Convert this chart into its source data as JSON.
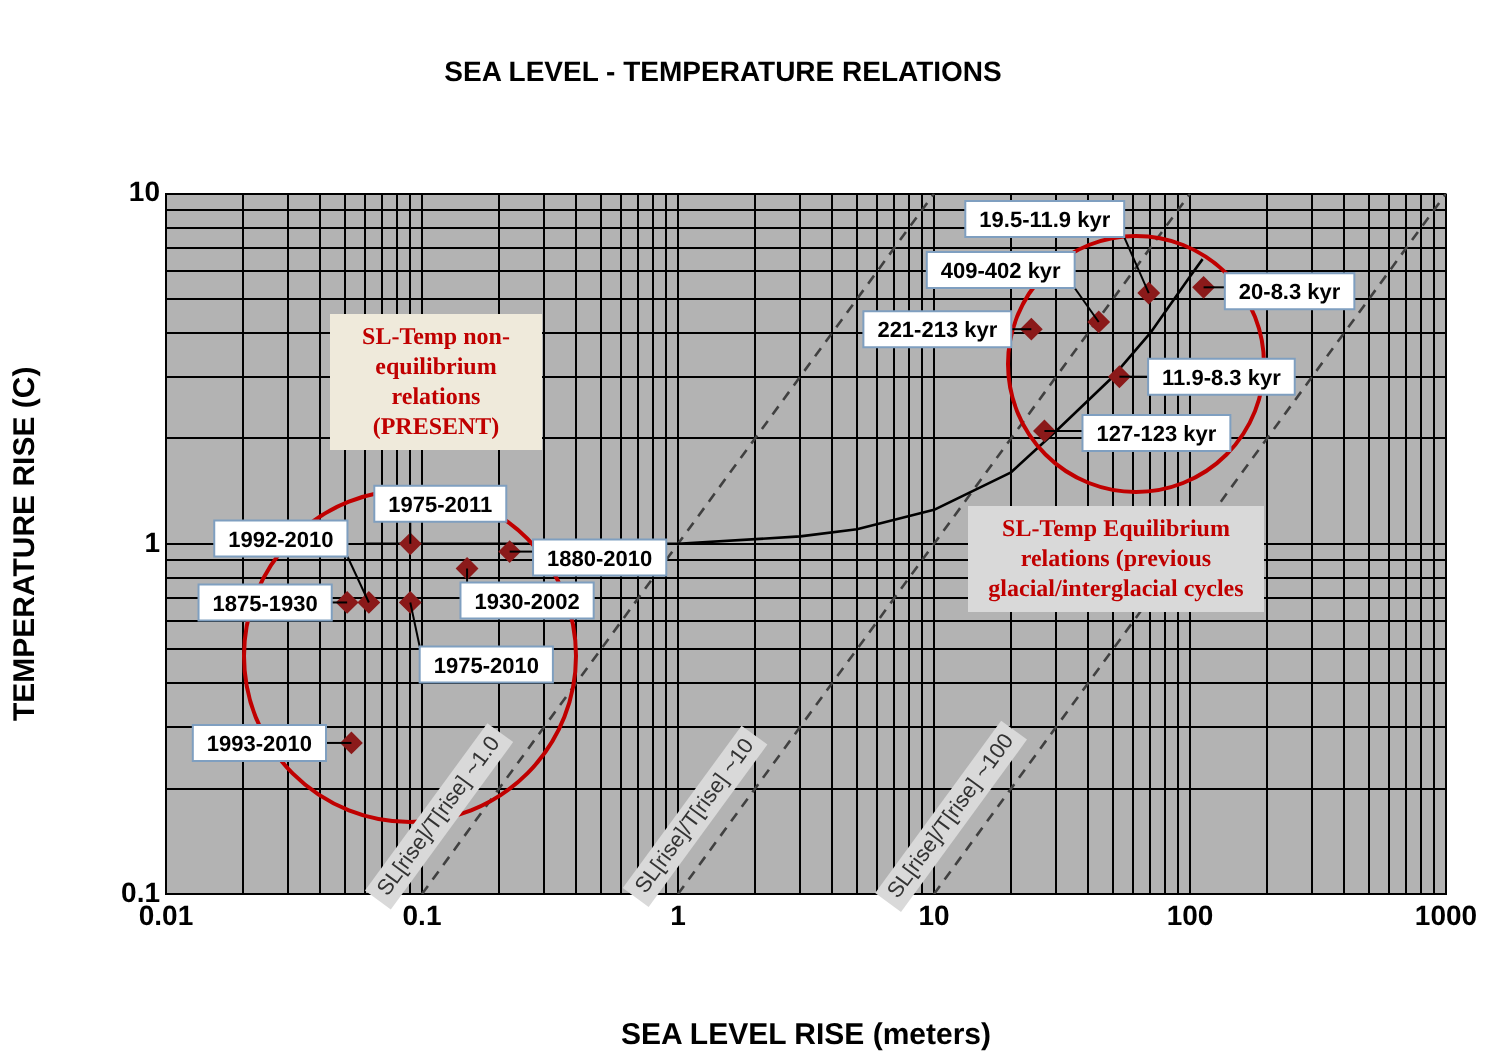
{
  "chart_data": {
    "type": "scatter",
    "title": "SEA LEVEL - TEMPERATURE RELATIONS",
    "xlabel": "SEA LEVEL RISE (meters)",
    "ylabel": "TEMPERATURE RISE (C)",
    "log": "xy",
    "grid": true,
    "legend": false,
    "xlim": [
      0.01,
      1000
    ],
    "ylim": [
      0.1,
      10
    ],
    "xticks": [
      0.01,
      {
        "value": 0.02,
        "label": null
      },
      {
        "value": 0.03,
        "label": null
      },
      {
        "value": 0.04,
        "label": null
      },
      {
        "value": 0.05,
        "label": null
      },
      {
        "value": 0.06,
        "label": null
      },
      {
        "value": 0.07,
        "label": null
      },
      {
        "value": 0.08,
        "label": null
      },
      {
        "value": 0.09,
        "label": null
      },
      0.1,
      {
        "value": 0.2,
        "label": null
      },
      {
        "value": 0.3,
        "label": null
      },
      {
        "value": 0.4,
        "label": null
      },
      {
        "value": 0.5,
        "label": null
      },
      {
        "value": 0.6,
        "label": null
      },
      {
        "value": 0.7,
        "label": null
      },
      {
        "value": 0.8,
        "label": null
      },
      {
        "value": 0.9,
        "label": null
      },
      1,
      {
        "value": 2,
        "label": null
      },
      {
        "value": 3,
        "label": null
      },
      {
        "value": 4,
        "label": null
      },
      {
        "value": 5,
        "label": null
      },
      {
        "value": 6,
        "label": null
      },
      {
        "value": 7,
        "label": null
      },
      {
        "value": 8,
        "label": null
      },
      {
        "value": 9,
        "label": null
      },
      10,
      {
        "value": 20,
        "label": null
      },
      {
        "value": 30,
        "label": null
      },
      {
        "value": 40,
        "label": null
      },
      {
        "value": 50,
        "label": null
      },
      {
        "value": 60,
        "label": null
      },
      {
        "value": 70,
        "label": null
      },
      {
        "value": 80,
        "label": null
      },
      {
        "value": 90,
        "label": null
      },
      100,
      {
        "value": 200,
        "label": null
      },
      {
        "value": 300,
        "label": null
      },
      {
        "value": 400,
        "label": null
      },
      {
        "value": 500,
        "label": null
      },
      {
        "value": 600,
        "label": null
      },
      {
        "value": 700,
        "label": null
      },
      {
        "value": 800,
        "label": null
      },
      {
        "value": 900,
        "label": null
      },
      1000
    ],
    "yticks": [
      0.1,
      {
        "value": 0.2,
        "label": null
      },
      {
        "value": 0.3,
        "label": null
      },
      {
        "value": 0.4,
        "label": null
      },
      {
        "value": 0.5,
        "label": null
      },
      {
        "value": 0.6,
        "label": null
      },
      {
        "value": 0.7,
        "label": null
      },
      {
        "value": 0.8,
        "label": null
      },
      {
        "value": 0.9,
        "label": null
      },
      1,
      {
        "value": 2,
        "label": null
      },
      {
        "value": 3,
        "label": null
      },
      {
        "value": 4,
        "label": null
      },
      {
        "value": 5,
        "label": null
      },
      {
        "value": 6,
        "label": null
      },
      {
        "value": 7,
        "label": null
      },
      {
        "value": 8,
        "label": null
      },
      {
        "value": 9,
        "label": null
      },
      10
    ],
    "series": [
      {
        "type": "scatter",
        "color": "#8b1a1a",
        "marker": "diamond",
        "x": [
          0.051,
          0.062,
          0.09,
          0.09,
          0.15,
          0.22,
          0.053,
          24,
          44,
          69,
          113,
          53,
          27
        ],
        "values": [
          0.68,
          0.68,
          1.0,
          0.68,
          0.85,
          0.95,
          0.27,
          4.1,
          4.3,
          5.2,
          5.4,
          3.0,
          2.1
        ]
      },
      {
        "type": "line",
        "color": "#000000",
        "x": [
          0.06,
          0.1,
          1,
          3,
          5,
          10,
          20,
          30,
          50,
          70,
          100,
          112
        ],
        "values": [
          1,
          1,
          1,
          1.05,
          1.1,
          1.25,
          1.6,
          2.1,
          3,
          4,
          5.8,
          6.5
        ]
      },
      {
        "type": "line",
        "color": "#404040",
        "line_style": "dashed",
        "x": [
          0.1,
          10
        ],
        "values": [
          0.1,
          10
        ]
      },
      {
        "type": "line",
        "color": "#404040",
        "line_style": "dashed",
        "x": [
          1,
          100
        ],
        "values": [
          0.1,
          10
        ]
      },
      {
        "type": "line",
        "color": "#404040",
        "line_style": "dashed",
        "x": [
          10,
          1000
        ],
        "values": [
          0.1,
          10
        ]
      }
    ],
    "annotations": [
      {
        "text": "1875-1930",
        "x": 0.051,
        "y": 0.68
      },
      {
        "text": "1992-2010",
        "x": 0.062,
        "y": 0.68
      },
      {
        "text": "1975-2011",
        "x": 0.09,
        "y": 1.0
      },
      {
        "text": "1975-2010",
        "x": 0.09,
        "y": 0.68
      },
      {
        "text": "1930-2002",
        "x": 0.15,
        "y": 0.85
      },
      {
        "text": "1880-2010",
        "x": 0.22,
        "y": 0.95
      },
      {
        "text": "1993-2010",
        "x": 0.053,
        "y": 0.27
      },
      {
        "text": "221-213 kyr",
        "x": 24,
        "y": 4.1
      },
      {
        "text": "409-402 kyr",
        "x": 44,
        "y": 4.3
      },
      {
        "text": "19.5-11.9 kyr",
        "x": 69,
        "y": 5.2
      },
      {
        "text": "20-8.3 kyr",
        "x": 113,
        "y": 5.4
      },
      {
        "text": "11.9-8.3 kyr",
        "x": 53,
        "y": 3.0
      },
      {
        "text": "127-123 kyr",
        "x": 27,
        "y": 2.1
      },
      {
        "text": "SL[rise]/T[rise] ~1.0",
        "x": 0.15,
        "y": 0.15
      },
      {
        "text": "SL[rise]/T[rise] ~10",
        "x": 1.5,
        "y": 0.15
      },
      {
        "text": "SL[rise]/T[rise] ~100",
        "x": 15,
        "y": 0.15
      },
      "SL-Temp non-equilibrium relations (PRESENT)",
      "SL-Temp Equilibrium relations (previous glacial/interglacial cycles"
    ]
  }
}
